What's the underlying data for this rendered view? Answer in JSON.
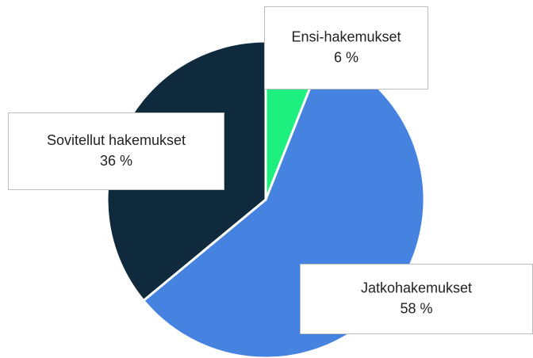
{
  "chart_data": {
    "type": "pie",
    "categories": [
      "Ensi-hakemukset",
      "Jatkohakemukset",
      "Sovitellut hakemukset"
    ],
    "values": [
      6,
      58,
      36
    ],
    "value_labels": [
      "6 %",
      "58 %",
      "36 %"
    ],
    "colors": [
      "#1ef07f",
      "#4682e0",
      "#0f2a3c"
    ]
  }
}
